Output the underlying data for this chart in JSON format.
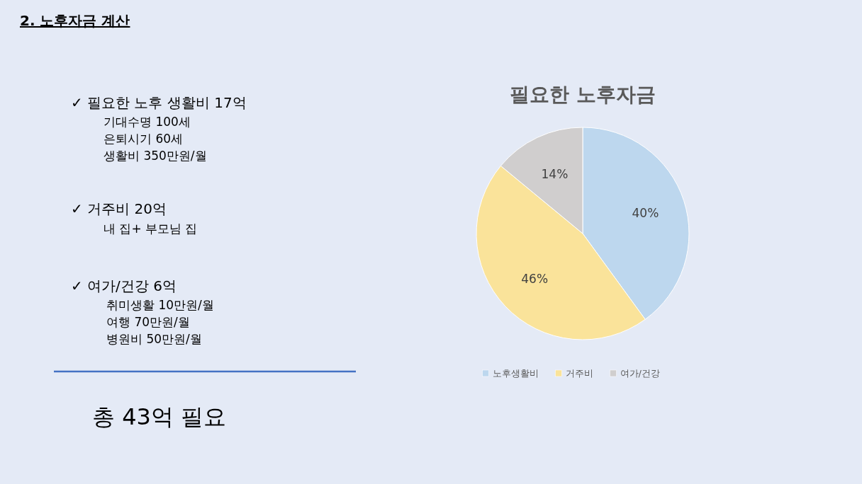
{
  "chart_data": [
    {
      "type": "other",
      "title": "2. 노후자금 계산",
      "annotations": [
        "✓ 필요한 노후 생활비 17억",
        "기대수명 100세",
        "은퇴시기 60세",
        "생활비 350만원/월",
        "✓ 거주비 20억",
        "내 집+ 부모님 집",
        "✓ 여가/건강 6억",
        "취미생활 10만원/월",
        "여행 70만원/월",
        "병원비 50만원/월",
        "총 43억 필요"
      ]
    },
    {
      "type": "pie",
      "title": "필요한 노후자금",
      "categories": [
        "노후생활비",
        "거주비",
        "여가/건강"
      ],
      "values": [
        40,
        46,
        14
      ],
      "colors": [
        "#bdd7ee",
        "#fae39a",
        "#d0cece"
      ],
      "value_labels": [
        "40%",
        "46%",
        "14%"
      ],
      "legend": "bottom"
    }
  ]
}
